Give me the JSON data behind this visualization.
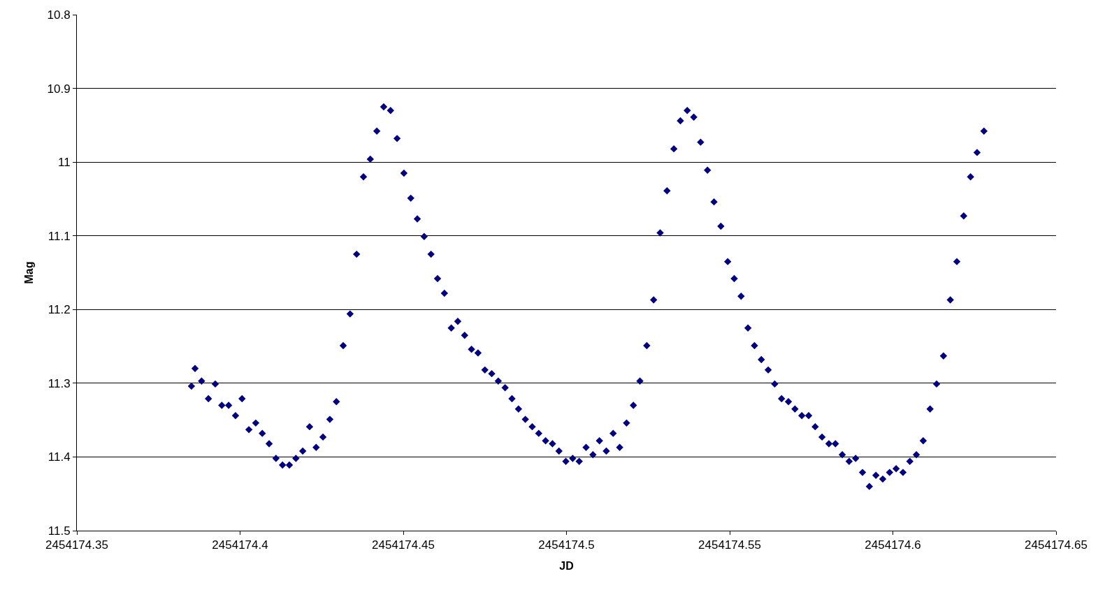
{
  "chart_data": {
    "type": "scatter",
    "xlabel": "JD",
    "ylabel": "Mag",
    "xlim": [
      2454174.35,
      2454174.65
    ],
    "xticks": [
      2454174.35,
      2454174.4,
      2454174.45,
      2454174.5,
      2454174.55,
      2454174.6,
      2454174.65
    ],
    "ylim": [
      11.5,
      10.8
    ],
    "yticks": [
      10.8,
      10.9,
      11,
      11.1,
      11.2,
      11.3,
      11.4,
      11.5
    ],
    "grid": "y",
    "marker": "diamond",
    "series": [
      {
        "color": "#000080",
        "x": [
          2454174.3851,
          2454174.3862,
          2454174.3882,
          2454174.3903,
          2454174.3924,
          2454174.3944,
          2454174.3965,
          2454174.3986,
          2454174.4006,
          2454174.4027,
          2454174.4048,
          2454174.4068,
          2454174.4089,
          2454174.411,
          2454174.413,
          2454174.4151,
          2454174.4171,
          2454174.4192,
          2454174.4213,
          2454174.4233,
          2454174.4254,
          2454174.4275,
          2454174.4295,
          2454174.4316,
          2454174.4337,
          2454174.4357,
          2454174.4378,
          2454174.4399,
          2454174.4419,
          2454174.444,
          2454174.4461,
          2454174.4481,
          2454174.4502,
          2454174.4523,
          2454174.4543,
          2454174.4564,
          2454174.4585,
          2454174.4605,
          2454174.4626,
          2454174.4647,
          2454174.4667,
          2454174.4688,
          2454174.4709,
          2454174.4729,
          2454174.475,
          2454174.4771,
          2454174.4791,
          2454174.4812,
          2454174.4833,
          2454174.4853,
          2454174.4874,
          2454174.4895,
          2454174.4915,
          2454174.4936,
          2454174.4957,
          2454174.4977,
          2454174.4998,
          2454174.5019,
          2454174.5039,
          2454174.506,
          2454174.5081,
          2454174.5101,
          2454174.5122,
          2454174.5143,
          2454174.5163,
          2454174.5184,
          2454174.5205,
          2454174.5225,
          2454174.5246,
          2454174.5267,
          2454174.5287,
          2454174.5308,
          2454174.5329,
          2454174.5349,
          2454174.537,
          2454174.539,
          2454174.5411,
          2454174.5432,
          2454174.5452,
          2454174.5473,
          2454174.5494,
          2454174.5514,
          2454174.5535,
          2454174.5556,
          2454174.5576,
          2454174.5597,
          2454174.5618,
          2454174.5638,
          2454174.5659,
          2454174.568,
          2454174.57,
          2454174.5721,
          2454174.5742,
          2454174.5762,
          2454174.5783,
          2454174.5804,
          2454174.5824,
          2454174.5845,
          2454174.5866,
          2454174.5886,
          2454174.5907,
          2454174.5928,
          2454174.5948,
          2454174.5969,
          2454174.599,
          2454174.601,
          2454174.6031,
          2454174.6052,
          2454174.6072,
          2454174.6093,
          2454174.6114,
          2454174.6134,
          2454174.6155,
          2454174.6176,
          2454174.6196,
          2454174.6217,
          2454174.6238,
          2454174.6258,
          2454174.6279
        ],
        "values": [
          11.304,
          11.28,
          11.297,
          11.321,
          11.301,
          11.33,
          11.33,
          11.344,
          11.321,
          11.363,
          11.354,
          11.368,
          11.382,
          11.402,
          11.411,
          11.411,
          11.402,
          11.392,
          11.359,
          11.387,
          11.373,
          11.349,
          11.325,
          11.249,
          11.206,
          11.125,
          11.02,
          10.996,
          10.958,
          10.925,
          10.93,
          10.968,
          11.015,
          11.049,
          11.077,
          11.101,
          11.125,
          11.158,
          11.178,
          11.225,
          11.216,
          11.235,
          11.254,
          11.259,
          11.282,
          11.287,
          11.297,
          11.306,
          11.321,
          11.335,
          11.349,
          11.359,
          11.368,
          11.378,
          11.382,
          11.392,
          11.406,
          11.402,
          11.406,
          11.387,
          11.397,
          11.378,
          11.392,
          11.368,
          11.387,
          11.354,
          11.33,
          11.297,
          11.249,
          11.187,
          11.096,
          11.039,
          10.982,
          10.944,
          10.93,
          10.939,
          10.973,
          11.011,
          11.054,
          11.087,
          11.135,
          11.158,
          11.182,
          11.225,
          11.249,
          11.268,
          11.282,
          11.301,
          11.321,
          11.325,
          11.335,
          11.344,
          11.344,
          11.359,
          11.373,
          11.382,
          11.382,
          11.397,
          11.406,
          11.402,
          11.421,
          11.44,
          11.425,
          11.43,
          11.421,
          11.416,
          11.421,
          11.406,
          11.397,
          11.378,
          11.335,
          11.301,
          11.263,
          11.187,
          11.135,
          11.073,
          11.02,
          10.987,
          10.958
        ]
      }
    ]
  }
}
